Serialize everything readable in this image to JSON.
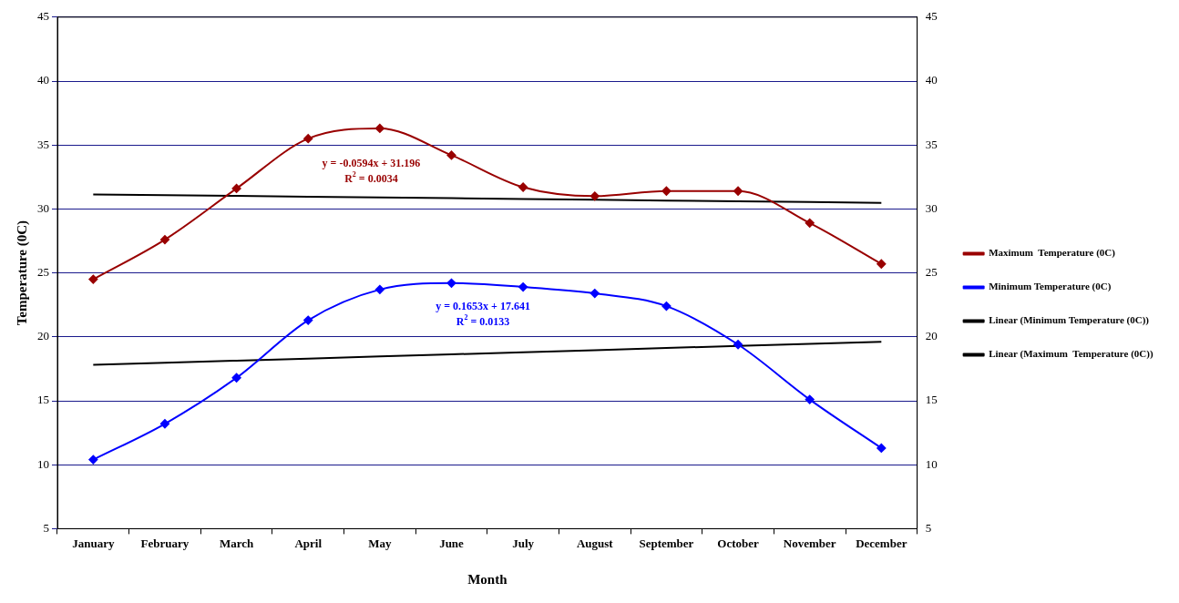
{
  "chart_data": {
    "type": "line",
    "xlabel": "Month",
    "ylabel": "Temperature (0C)",
    "categories": [
      "January",
      "February",
      "March",
      "April",
      "May",
      "June",
      "July",
      "August",
      "September",
      "October",
      "November",
      "December"
    ],
    "series": [
      {
        "name": "Maximum  Temperature (0C)",
        "color": "#990000",
        "marker": "diamond",
        "values": [
          24.5,
          27.6,
          31.6,
          35.5,
          36.3,
          34.2,
          31.7,
          31.0,
          31.4,
          31.4,
          28.9,
          25.7
        ]
      },
      {
        "name": "Minimum Temperature (0C)",
        "color": "#0000ff",
        "marker": "diamond",
        "values": [
          10.4,
          13.2,
          16.8,
          21.3,
          23.7,
          24.2,
          23.9,
          23.4,
          22.4,
          19.4,
          15.1,
          11.3
        ]
      },
      {
        "name": "Linear (Minimum Temperature (0C))",
        "color": "#000000",
        "marker": "none",
        "values": [
          17.81,
          17.97,
          18.14,
          18.3,
          18.47,
          18.63,
          18.8,
          18.96,
          19.13,
          19.29,
          19.46,
          19.62
        ]
      },
      {
        "name": "Linear (Maximum  Temperature (0C))",
        "color": "#000000",
        "marker": "none",
        "values": [
          31.14,
          31.08,
          31.02,
          30.96,
          30.9,
          30.84,
          30.78,
          30.72,
          30.66,
          30.6,
          30.54,
          30.48
        ]
      }
    ],
    "ylim": [
      5,
      45
    ],
    "yticks": [
      5,
      10,
      15,
      20,
      25,
      30,
      35,
      40,
      45
    ],
    "y2lim": [
      5,
      45
    ],
    "y2ticks": [
      5,
      10,
      15,
      20,
      25,
      30,
      35,
      40,
      45
    ],
    "grid": "y",
    "legend": "right",
    "annotations": [
      "y = -0.0594x + 31.196",
      "R$^{2}$ = 0.0034",
      "y = 0.1653x + 17.641",
      "R$^{2}$ = 0.0133"
    ]
  }
}
